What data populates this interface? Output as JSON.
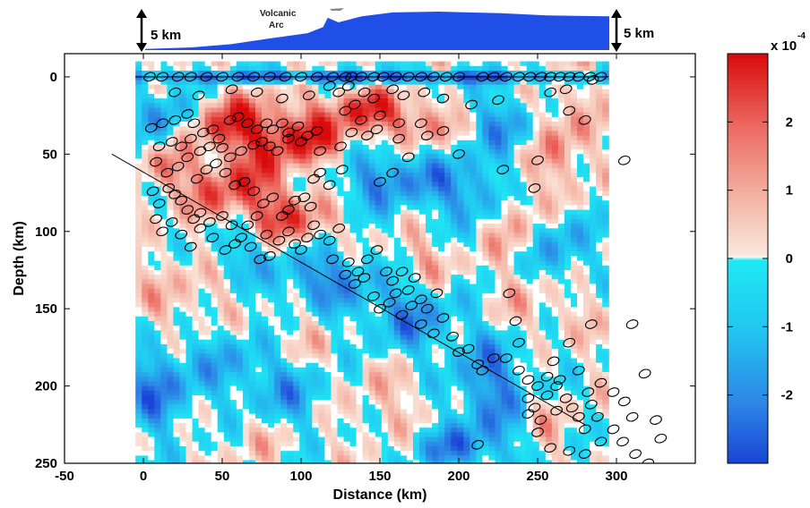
{
  "chart_data": {
    "type": "heatmap",
    "title": "",
    "xlabel": "Distance (km)",
    "ylabel": "Depth (km)",
    "xlim": [
      -50,
      350
    ],
    "ylim": [
      250,
      -15
    ],
    "x_ticks": [
      -50,
      0,
      50,
      100,
      150,
      200,
      250,
      300
    ],
    "y_ticks": [
      0,
      50,
      100,
      150,
      200,
      250
    ],
    "data_extent": {
      "x": [
        -5,
        295
      ],
      "y": [
        -10,
        250
      ]
    },
    "colorbar": {
      "exponent_label": "x 10",
      "exponent": "-4",
      "ticks": [
        2,
        1,
        0,
        -1,
        -2
      ],
      "range": [
        -3,
        3
      ],
      "colors": {
        "neg_strong": "#1a4ed8",
        "neg_mid": "#2ea0ef",
        "neg_weak": "#22e6f2",
        "zero": "#ffffff",
        "pos_weak": "#f7d6c2",
        "pos_mid": "#ec7a70",
        "pos_strong": "#d90a0a"
      }
    },
    "slab_line": {
      "from": [
        -20,
        50
      ],
      "to": [
        280,
        225
      ]
    },
    "surface_line_depth": 0,
    "topography": {
      "label_line1": "Volcanic",
      "label_line2": "Arc",
      "scale_left": "5 km",
      "scale_right": "5 km",
      "color": "#1f4fe6",
      "profile": [
        [
          0,
          0.15
        ],
        [
          30,
          0.35
        ],
        [
          55,
          0.75
        ],
        [
          80,
          1.5
        ],
        [
          105,
          2.2
        ],
        [
          115,
          3.0
        ],
        [
          118,
          4.2
        ],
        [
          125,
          3.6
        ],
        [
          140,
          4.4
        ],
        [
          160,
          4.9
        ],
        [
          190,
          5.0
        ],
        [
          230,
          4.8
        ],
        [
          260,
          4.5
        ],
        [
          300,
          4.4
        ]
      ]
    },
    "anomalies": [
      {
        "x": 100,
        "y": 40,
        "sx": 35,
        "sy": 22,
        "a": 2.3
      },
      {
        "x": 55,
        "y": 30,
        "sx": 25,
        "sy": 18,
        "a": 2.0
      },
      {
        "x": 140,
        "y": 20,
        "sx": 20,
        "sy": 14,
        "a": 1.8
      },
      {
        "x": 175,
        "y": 30,
        "sx": 22,
        "sy": 16,
        "a": 1.6
      },
      {
        "x": 60,
        "y": 75,
        "sx": 30,
        "sy": 22,
        "a": 2.0
      },
      {
        "x": 100,
        "y": 95,
        "sx": 25,
        "sy": 18,
        "a": 1.8
      },
      {
        "x": 15,
        "y": 60,
        "sx": 15,
        "sy": 15,
        "a": 1.5
      },
      {
        "x": 265,
        "y": 40,
        "sx": 20,
        "sy": 40,
        "a": 1.3
      },
      {
        "x": 235,
        "y": 90,
        "sx": 15,
        "sy": 25,
        "a": 1.2
      },
      {
        "x": 30,
        "y": 150,
        "sx": 35,
        "sy": 40,
        "a": 0.8
      },
      {
        "x": 100,
        "y": 160,
        "sx": 25,
        "sy": 30,
        "a": 0.7
      },
      {
        "x": 175,
        "y": 120,
        "sx": 25,
        "sy": 20,
        "a": 0.9
      },
      {
        "x": 245,
        "y": 150,
        "sx": 40,
        "sy": 25,
        "a": 0.7
      },
      {
        "x": 150,
        "y": 210,
        "sx": 35,
        "sy": 30,
        "a": 0.6
      },
      {
        "x": 75,
        "y": 230,
        "sx": 25,
        "sy": 25,
        "a": 0.6
      },
      {
        "x": 255,
        "y": 225,
        "sx": 18,
        "sy": 20,
        "a": 0.6
      },
      {
        "x": 140,
        "y": 0,
        "sx": 180,
        "sy": 4,
        "a": -2.5
      },
      {
        "x": 15,
        "y": 25,
        "sx": 18,
        "sy": 18,
        "a": -1.5
      },
      {
        "x": 155,
        "y": 65,
        "sx": 40,
        "sy": 20,
        "a": -1.8
      },
      {
        "x": 230,
        "y": 30,
        "sx": 25,
        "sy": 20,
        "a": -1.4
      },
      {
        "x": 210,
        "y": 75,
        "sx": 25,
        "sy": 20,
        "a": -1.5
      },
      {
        "x": 110,
        "y": 130,
        "sx": 35,
        "sy": 25,
        "a": -1.9
      },
      {
        "x": 170,
        "y": 155,
        "sx": 30,
        "sy": 25,
        "a": -1.6
      },
      {
        "x": 55,
        "y": 110,
        "sx": 18,
        "sy": 20,
        "a": -1.2
      },
      {
        "x": 10,
        "y": 200,
        "sx": 20,
        "sy": 30,
        "a": -2.0
      },
      {
        "x": 90,
        "y": 205,
        "sx": 30,
        "sy": 25,
        "a": -1.5
      },
      {
        "x": 220,
        "y": 200,
        "sx": 25,
        "sy": 40,
        "a": -1.8
      },
      {
        "x": 265,
        "y": 110,
        "sx": 20,
        "sy": 25,
        "a": -1.4
      },
      {
        "x": 195,
        "y": 240,
        "sx": 30,
        "sy": 15,
        "a": -1.5
      },
      {
        "x": 50,
        "y": 180,
        "sx": 25,
        "sy": 25,
        "a": -1.3
      }
    ],
    "events_surface": [
      [
        4,
        0
      ],
      [
        12,
        0
      ],
      [
        22,
        0
      ],
      [
        30,
        0
      ],
      [
        40,
        0
      ],
      [
        50,
        0
      ],
      [
        60,
        0
      ],
      [
        70,
        0
      ],
      [
        80,
        0
      ],
      [
        90,
        0
      ],
      [
        100,
        0
      ],
      [
        110,
        0
      ],
      [
        120,
        0
      ],
      [
        128,
        0
      ],
      [
        132,
        0
      ],
      [
        138,
        0
      ],
      [
        146,
        0
      ],
      [
        152,
        0
      ],
      [
        160,
        0
      ],
      [
        168,
        0
      ],
      [
        176,
        0
      ],
      [
        184,
        0
      ],
      [
        192,
        0
      ],
      [
        200,
        0
      ],
      [
        215,
        0
      ],
      [
        222,
        0
      ],
      [
        230,
        0
      ],
      [
        238,
        0
      ],
      [
        245,
        0
      ],
      [
        252,
        0
      ],
      [
        258,
        0
      ],
      [
        264,
        0
      ],
      [
        270,
        0
      ],
      [
        276,
        0
      ],
      [
        283,
        0
      ],
      [
        290,
        0
      ]
    ],
    "events": [
      [
        20,
        10
      ],
      [
        35,
        12
      ],
      [
        56,
        8
      ],
      [
        72,
        10
      ],
      [
        88,
        14
      ],
      [
        105,
        12
      ],
      [
        118,
        6
      ],
      [
        124,
        10
      ],
      [
        130,
        6
      ],
      [
        134,
        18
      ],
      [
        140,
        10
      ],
      [
        146,
        14
      ],
      [
        158,
        8
      ],
      [
        165,
        12
      ],
      [
        178,
        10
      ],
      [
        190,
        14
      ],
      [
        208,
        18
      ],
      [
        225,
        15
      ],
      [
        258,
        10
      ],
      [
        268,
        8
      ],
      [
        285,
        2
      ],
      [
        128,
        22
      ],
      [
        138,
        28
      ],
      [
        150,
        25
      ],
      [
        162,
        30
      ],
      [
        176,
        30
      ],
      [
        190,
        35
      ],
      [
        270,
        22
      ],
      [
        280,
        28
      ],
      [
        5,
        33
      ],
      [
        12,
        30
      ],
      [
        20,
        28
      ],
      [
        28,
        24
      ],
      [
        32,
        30
      ],
      [
        38,
        36
      ],
      [
        44,
        34
      ],
      [
        48,
        40
      ],
      [
        55,
        28
      ],
      [
        60,
        26
      ],
      [
        66,
        30
      ],
      [
        72,
        34
      ],
      [
        78,
        30
      ],
      [
        82,
        34
      ],
      [
        88,
        30
      ],
      [
        92,
        36
      ],
      [
        98,
        32
      ],
      [
        104,
        38
      ],
      [
        110,
        35
      ],
      [
        10,
        45
      ],
      [
        18,
        42
      ],
      [
        24,
        45
      ],
      [
        30,
        40
      ],
      [
        36,
        48
      ],
      [
        42,
        45
      ],
      [
        50,
        46
      ],
      [
        55,
        52
      ],
      [
        62,
        48
      ],
      [
        70,
        44
      ],
      [
        75,
        42
      ],
      [
        80,
        45
      ],
      [
        85,
        48
      ],
      [
        92,
        40
      ],
      [
        100,
        42
      ],
      [
        112,
        48
      ],
      [
        125,
        45
      ],
      [
        132,
        36
      ],
      [
        142,
        38
      ],
      [
        148,
        34
      ],
      [
        162,
        40
      ],
      [
        180,
        38
      ],
      [
        8,
        55
      ],
      [
        15,
        62
      ],
      [
        22,
        58
      ],
      [
        28,
        52
      ],
      [
        34,
        66
      ],
      [
        40,
        60
      ],
      [
        46,
        56
      ],
      [
        52,
        62
      ],
      [
        58,
        70
      ],
      [
        64,
        68
      ],
      [
        70,
        74
      ],
      [
        76,
        82
      ],
      [
        82,
        78
      ],
      [
        88,
        90
      ],
      [
        92,
        86
      ],
      [
        96,
        80
      ],
      [
        102,
        78
      ],
      [
        106,
        84
      ],
      [
        108,
        66
      ],
      [
        112,
        62
      ],
      [
        118,
        70
      ],
      [
        126,
        60
      ],
      [
        150,
        68
      ],
      [
        158,
        62
      ],
      [
        168,
        52
      ],
      [
        200,
        50
      ],
      [
        228,
        60
      ],
      [
        250,
        54
      ],
      [
        305,
        54
      ],
      [
        248,
        72
      ],
      [
        6,
        74
      ],
      [
        10,
        82
      ],
      [
        16,
        72
      ],
      [
        20,
        76
      ],
      [
        24,
        80
      ],
      [
        28,
        86
      ],
      [
        32,
        92
      ],
      [
        36,
        88
      ],
      [
        42,
        94
      ],
      [
        50,
        90
      ],
      [
        56,
        96
      ],
      [
        62,
        104
      ],
      [
        68,
        110
      ],
      [
        74,
        118
      ],
      [
        80,
        116
      ],
      [
        86,
        106
      ],
      [
        92,
        100
      ],
      [
        96,
        108
      ],
      [
        100,
        112
      ],
      [
        104,
        104
      ],
      [
        108,
        96
      ],
      [
        112,
        102
      ],
      [
        118,
        106
      ],
      [
        124,
        98
      ],
      [
        130,
        120
      ],
      [
        136,
        126
      ],
      [
        142,
        118
      ],
      [
        148,
        112
      ],
      [
        154,
        126
      ],
      [
        158,
        132
      ],
      [
        164,
        126
      ],
      [
        168,
        138
      ],
      [
        172,
        130
      ],
      [
        176,
        144
      ],
      [
        180,
        150
      ],
      [
        186,
        140
      ],
      [
        190,
        156
      ],
      [
        8,
        92
      ],
      [
        12,
        100
      ],
      [
        18,
        94
      ],
      [
        24,
        102
      ],
      [
        30,
        110
      ],
      [
        36,
        98
      ],
      [
        44,
        104
      ],
      [
        52,
        112
      ],
      [
        58,
        108
      ],
      [
        66,
        96
      ],
      [
        72,
        90
      ],
      [
        78,
        102
      ],
      [
        120,
        118
      ],
      [
        128,
        128
      ],
      [
        134,
        134
      ],
      [
        140,
        130
      ],
      [
        146,
        142
      ],
      [
        150,
        150
      ],
      [
        156,
        146
      ],
      [
        160,
        140
      ],
      [
        164,
        154
      ],
      [
        170,
        148
      ],
      [
        176,
        160
      ],
      [
        184,
        166
      ],
      [
        196,
        168
      ],
      [
        206,
        176
      ],
      [
        212,
        186
      ],
      [
        222,
        182
      ],
      [
        230,
        182
      ],
      [
        238,
        190
      ],
      [
        244,
        196
      ],
      [
        250,
        200
      ],
      [
        256,
        194
      ],
      [
        262,
        200
      ],
      [
        268,
        208
      ],
      [
        272,
        214
      ],
      [
        276,
        220
      ],
      [
        280,
        228
      ],
      [
        284,
        212
      ],
      [
        288,
        220
      ],
      [
        200,
        178
      ],
      [
        215,
        190
      ],
      [
        232,
        140
      ],
      [
        238,
        172
      ],
      [
        244,
        208
      ],
      [
        248,
        214
      ],
      [
        252,
        222
      ],
      [
        256,
        206
      ],
      [
        260,
        184
      ],
      [
        264,
        196
      ],
      [
        270,
        172
      ],
      [
        276,
        190
      ],
      [
        282,
        204
      ],
      [
        290,
        198
      ],
      [
        298,
        204
      ],
      [
        305,
        210
      ],
      [
        310,
        220
      ],
      [
        318,
        192
      ],
      [
        298,
        228
      ],
      [
        304,
        236
      ],
      [
        312,
        244
      ],
      [
        320,
        250
      ],
      [
        325,
        222
      ],
      [
        328,
        234
      ],
      [
        310,
        160
      ],
      [
        236,
        158
      ],
      [
        284,
        160
      ],
      [
        270,
        242
      ],
      [
        280,
        244
      ],
      [
        290,
        236
      ],
      [
        212,
        238
      ],
      [
        250,
        230
      ],
      [
        258,
        240
      ],
      [
        262,
        216
      ],
      [
        244,
        218
      ]
    ]
  }
}
